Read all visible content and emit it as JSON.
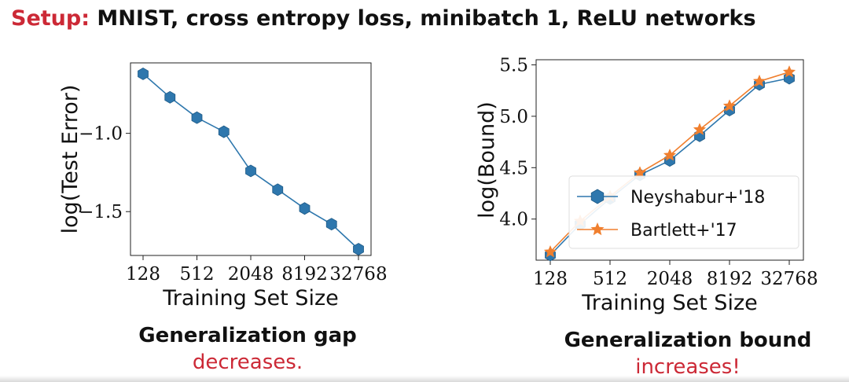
{
  "header": {
    "setup_label": "Setup:",
    "setup_text": "MNIST, cross entropy loss, minibatch 1, ReLU networks"
  },
  "captions": {
    "left": {
      "main": "Generalization gap",
      "accent": "decreases."
    },
    "right": {
      "main": "Generalization bound",
      "accent": "increases!"
    }
  },
  "colors": {
    "accent": "#cc2936",
    "series_blue": "#2e77ad",
    "series_orange": "#f07f2e"
  },
  "chart_data": [
    {
      "type": "line",
      "title": "",
      "xlabel": "Training Set Size",
      "ylabel": "log(Test Error)",
      "x_scale": "log2",
      "x": [
        128,
        256,
        512,
        1024,
        2048,
        4096,
        8192,
        16384,
        32768
      ],
      "x_ticks": [
        128,
        512,
        2048,
        8192,
        32768
      ],
      "y_ticks": [
        -1.0,
        -1.5
      ],
      "ylim": [
        -1.78,
        -0.55
      ],
      "grid": false,
      "legend": null,
      "series": [
        {
          "marker": "hexagon",
          "color": "#2e77ad",
          "values": [
            -0.62,
            -0.77,
            -0.9,
            -0.99,
            -1.24,
            -1.36,
            -1.48,
            -1.58,
            -1.74
          ]
        }
      ]
    },
    {
      "type": "line",
      "title": "",
      "xlabel": "Training Set Size",
      "ylabel": "log(Bound)",
      "x_scale": "log2",
      "x": [
        128,
        256,
        512,
        1024,
        2048,
        4096,
        8192,
        16384,
        32768
      ],
      "x_ticks": [
        128,
        512,
        2048,
        8192,
        32768
      ],
      "y_ticks": [
        4.0,
        4.5,
        5.0,
        5.5
      ],
      "ylim": [
        3.6,
        5.55
      ],
      "grid": false,
      "legend": "lower-right",
      "series": [
        {
          "name": "Neyshabur+'18",
          "marker": "hexagon",
          "color": "#2e77ad",
          "values": [
            3.65,
            3.95,
            4.2,
            4.43,
            4.57,
            4.81,
            5.06,
            5.31,
            5.37
          ]
        },
        {
          "name": "Bartlett+'17",
          "marker": "star",
          "color": "#f07f2e",
          "values": [
            3.68,
            3.98,
            4.22,
            4.45,
            4.62,
            4.87,
            5.1,
            5.34,
            5.43
          ]
        }
      ]
    }
  ]
}
